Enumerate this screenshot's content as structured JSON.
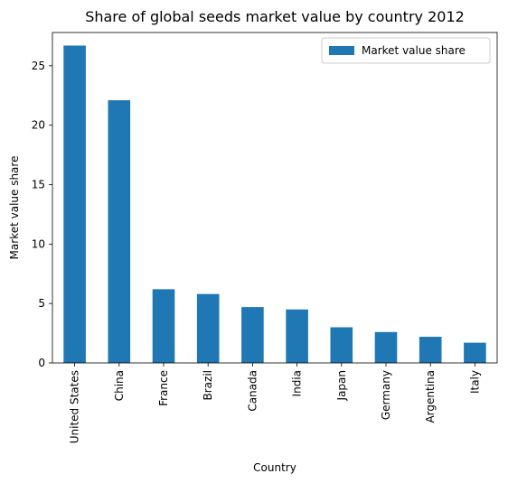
{
  "chart_data": {
    "type": "bar",
    "title": "Share of global seeds market value by country 2012",
    "xlabel": "Country",
    "ylabel": "Market value share",
    "categories": [
      "United States",
      "China",
      "France",
      "Brazil",
      "Canada",
      "India",
      "Japan",
      "Germany",
      "Argentina",
      "Italy"
    ],
    "series": [
      {
        "name": "Market value share",
        "values": [
          26.7,
          22.1,
          6.2,
          5.8,
          4.7,
          4.5,
          3.0,
          2.6,
          2.2,
          1.7
        ],
        "color": "#1f77b4"
      }
    ],
    "ylim": [
      0,
      27.8
    ],
    "yticks": [
      0,
      5,
      10,
      15,
      20,
      25
    ],
    "grid": false,
    "legend_position": "top-right"
  }
}
